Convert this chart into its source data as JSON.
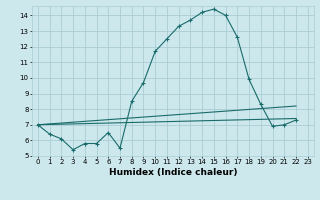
{
  "title": "",
  "xlabel": "Humidex (Indice chaleur)",
  "bg_color": "#cce8ec",
  "grid_color": "#aacdd4",
  "line_color": "#1a6b6b",
  "xlim": [
    -0.5,
    23.5
  ],
  "ylim": [
    5,
    14.6
  ],
  "yticks": [
    5,
    6,
    7,
    8,
    9,
    10,
    11,
    12,
    13,
    14
  ],
  "xticks": [
    0,
    1,
    2,
    3,
    4,
    5,
    6,
    7,
    8,
    9,
    10,
    11,
    12,
    13,
    14,
    15,
    16,
    17,
    18,
    19,
    20,
    21,
    22,
    23
  ],
  "line1_x": [
    0,
    1,
    2,
    3,
    4,
    5,
    6,
    7,
    8,
    9,
    10,
    11,
    12,
    13,
    14,
    15,
    16,
    17,
    18,
    19,
    20,
    21,
    22
  ],
  "line1_y": [
    7.0,
    6.4,
    6.1,
    5.4,
    5.8,
    5.8,
    6.5,
    5.5,
    8.5,
    9.7,
    11.7,
    12.5,
    13.3,
    13.7,
    14.2,
    14.4,
    14.0,
    12.6,
    9.9,
    8.3,
    6.9,
    7.0,
    7.3
  ],
  "line2_x": [
    0,
    22
  ],
  "line2_y": [
    7.0,
    8.2
  ],
  "line3_x": [
    0,
    22
  ],
  "line3_y": [
    7.0,
    7.4
  ]
}
